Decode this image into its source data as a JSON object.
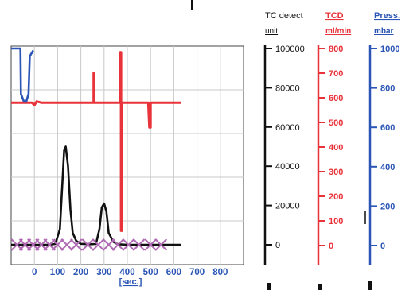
{
  "chart_data": {
    "type": "line",
    "x": {
      "label": "[sec.]",
      "ticks": [
        0,
        100,
        200,
        300,
        400,
        500,
        600,
        700,
        800
      ],
      "range": [
        -100,
        900
      ]
    },
    "axes": [
      {
        "key": "tcd",
        "title_line1": "TC detect",
        "title_line2": "unit",
        "color": "#111111",
        "range": [
          -10000,
          100000
        ],
        "ticks": [
          0,
          20000,
          40000,
          60000,
          80000,
          100000
        ]
      },
      {
        "key": "flow",
        "title_line1": "TCD",
        "title_line2": "ml/min",
        "color": "#e8333a",
        "range": [
          -10,
          800
        ],
        "ticks": [
          0,
          100,
          200,
          300,
          400,
          500,
          600,
          700,
          800
        ]
      },
      {
        "key": "press",
        "title_line1": "Press.",
        "title_line2": "mbar",
        "color": "#2a55b5",
        "range": [
          -100,
          1000
        ],
        "ticks": [
          0,
          200,
          400,
          600,
          800,
          1000
        ]
      }
    ],
    "series": [
      {
        "axis": "tcd",
        "color": "#111111",
        "points": [
          [
            -100,
            0
          ],
          [
            60,
            0
          ],
          [
            90,
            400
          ],
          [
            110,
            8000
          ],
          [
            120,
            30000
          ],
          [
            128,
            48000
          ],
          [
            135,
            50000
          ],
          [
            145,
            40000
          ],
          [
            155,
            18000
          ],
          [
            165,
            6000
          ],
          [
            180,
            2000
          ],
          [
            200,
            500
          ],
          [
            240,
            300
          ],
          [
            265,
            400
          ],
          [
            280,
            8000
          ],
          [
            290,
            19000
          ],
          [
            300,
            21000
          ],
          [
            310,
            17000
          ],
          [
            320,
            6000
          ],
          [
            340,
            1500
          ],
          [
            360,
            300
          ],
          [
            400,
            0
          ],
          [
            630,
            0
          ]
        ]
      },
      {
        "axis": "flow",
        "color": "#e8333a",
        "points": [
          [
            -100,
            580
          ],
          [
            -10,
            580
          ],
          [
            0,
            570
          ],
          [
            10,
            585
          ],
          [
            30,
            580
          ],
          [
            240,
            580
          ],
          [
            255,
            580
          ],
          [
            255,
            700
          ],
          [
            258,
            700
          ],
          [
            258,
            580
          ],
          [
            370,
            580
          ],
          [
            370,
            785
          ],
          [
            373,
            785
          ],
          [
            373,
            60
          ],
          [
            376,
            60
          ],
          [
            376,
            580
          ],
          [
            490,
            580
          ],
          [
            495,
            480
          ],
          [
            500,
            480
          ],
          [
            500,
            580
          ],
          [
            630,
            580
          ]
        ]
      },
      {
        "axis": "press",
        "color": "#2a55b5",
        "points": [
          [
            -100,
            1000
          ],
          [
            -60,
            1000
          ],
          [
            -58,
            770
          ],
          [
            -45,
            730
          ],
          [
            -35,
            730
          ],
          [
            -25,
            770
          ],
          [
            -20,
            960
          ],
          [
            -5,
            990
          ]
        ]
      }
    ],
    "markers": {
      "type": "x",
      "color": "#b06ab3",
      "axis": "tcd",
      "points": [
        [
          -75,
          0
        ],
        [
          -40,
          0
        ],
        [
          -5,
          0
        ],
        [
          30,
          0
        ],
        [
          65,
          0
        ],
        [
          100,
          0
        ],
        [
          140,
          0
        ],
        [
          180,
          0
        ],
        [
          230,
          0
        ],
        [
          275,
          0
        ],
        [
          320,
          0
        ],
        [
          360,
          0
        ],
        [
          405,
          0
        ],
        [
          450,
          0
        ],
        [
          500,
          0
        ],
        [
          545,
          0
        ]
      ]
    }
  }
}
